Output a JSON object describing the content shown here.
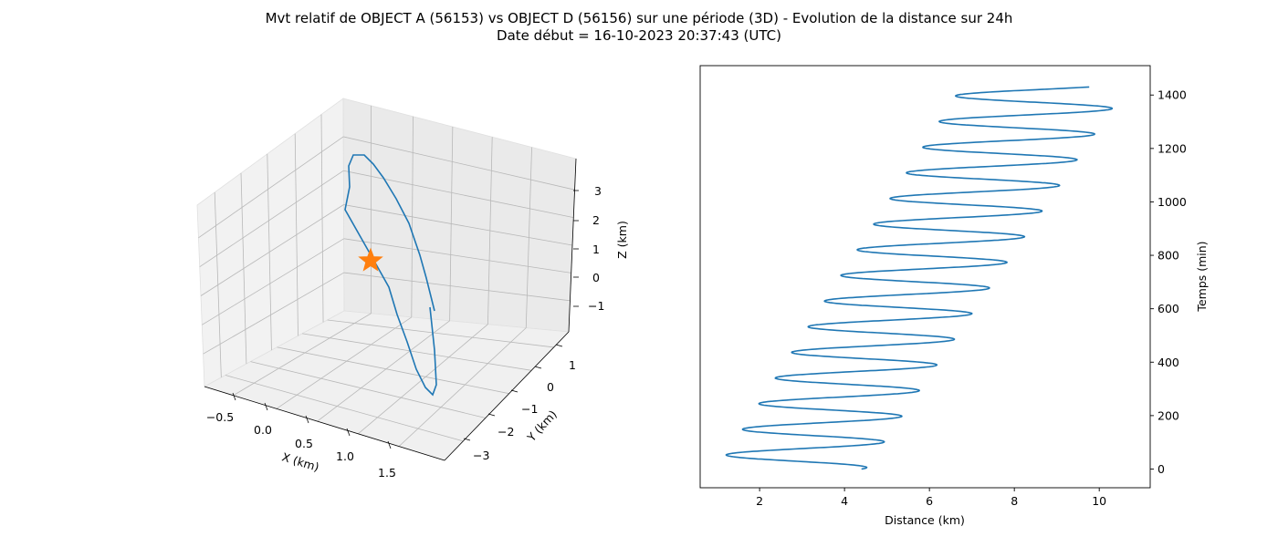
{
  "title_line1": "Mvt relatif de OBJECT A (56153) vs OBJECT D (56156) sur une période (3D) - Evolution de la distance sur 24h",
  "title_line2": "Date début = 16-10-2023 20:37:43 (UTC)",
  "colors": {
    "line": "#1f77b4",
    "marker": "#ff7f0e",
    "pane": "#f2f2f2",
    "grid": "#b0b0b0"
  },
  "chart_data": [
    {
      "type": "line3d",
      "xlabel": "X (km)",
      "ylabel": "Y (km)",
      "zlabel": "Z (km)",
      "x_ticks": [
        "−0.5",
        "0.0",
        "0.5",
        "1.0",
        "1.5"
      ],
      "y_ticks": [
        "1",
        "0",
        "−1",
        "−2",
        "−3"
      ],
      "z_ticks": [
        "3",
        "2",
        "1",
        "0",
        "−1"
      ],
      "grid": true,
      "marker": {
        "shape": "star",
        "x": 0,
        "y": 0,
        "z": 0
      }
    },
    {
      "type": "line",
      "xlabel": "Distance (km)",
      "ylabel": "Temps (min)",
      "xlim": [
        0.6,
        11.2
      ],
      "ylim": [
        -70,
        1510
      ],
      "x_ticks": [
        2,
        4,
        6,
        8,
        10
      ],
      "y_ticks": [
        0,
        200,
        400,
        600,
        800,
        1000,
        1200,
        1400
      ],
      "y_axis_side": "right",
      "grid": false,
      "series": [
        {
          "x_center_start": 2.75,
          "x_center_end": 8.7,
          "amplitude_start": 1.75,
          "amplitude_end": 1.95,
          "period_min": 96,
          "t_start": 0,
          "t_end": 1430,
          "x_start": 4.4
        }
      ]
    }
  ]
}
